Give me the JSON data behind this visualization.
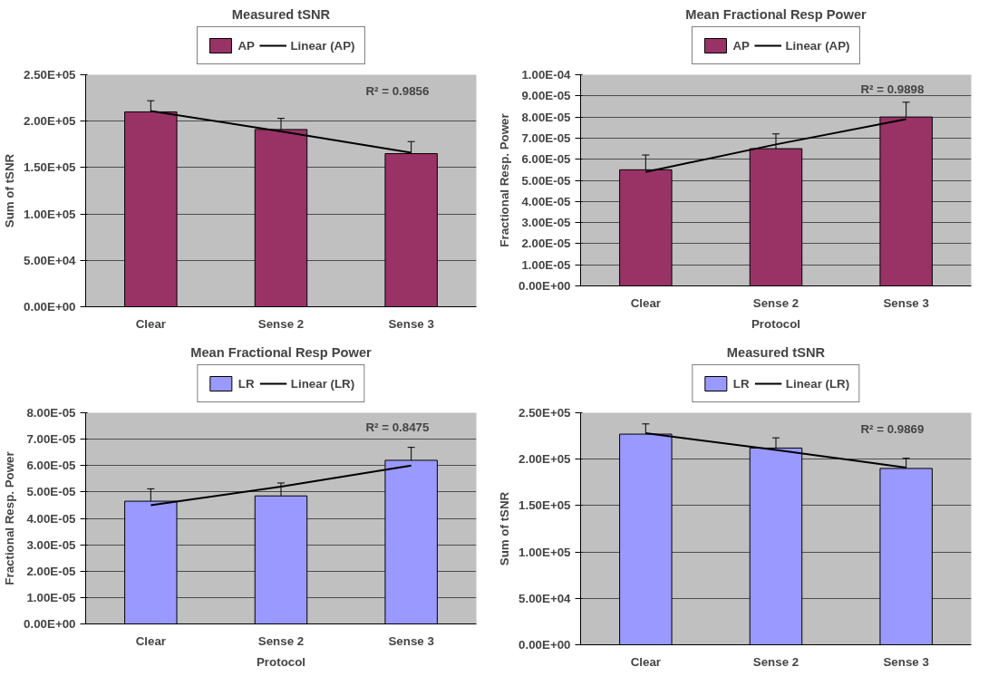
{
  "chart_data": [
    {
      "type": "bar",
      "title": "Measured tSNR",
      "ylabel": "Sum of tSNR",
      "categories": [
        "Clear",
        "Sense 2",
        "Sense 3"
      ],
      "series": [
        {
          "name": "AP",
          "color": "#993366",
          "values": [
            210000,
            191000,
            165000
          ],
          "errors": [
            12000,
            12000,
            13000
          ]
        },
        {
          "name": "Linear (AP)",
          "type": "line",
          "color": "#000000",
          "values": [
            211000,
            189000,
            166000
          ]
        }
      ],
      "ylim": [
        0,
        250000
      ],
      "yticks": [
        {
          "value": 0,
          "label": "0.00E+00"
        },
        {
          "value": 50000,
          "label": "5.00E+04"
        },
        {
          "value": 100000,
          "label": "1.00E+05"
        },
        {
          "value": 150000,
          "label": "1.50E+05"
        },
        {
          "value": 200000,
          "label": "2.00E+05"
        },
        {
          "value": 250000,
          "label": "2.50E+05"
        }
      ],
      "annotations": [
        "R² = 0.9856"
      ],
      "grid": "y",
      "legend": "top"
    },
    {
      "type": "bar",
      "title": "Mean Fractional Resp Power",
      "xlabel": "Protocol",
      "ylabel": "Fractional Resp. Power",
      "categories": [
        "Clear",
        "Sense 2",
        "Sense 3"
      ],
      "series": [
        {
          "name": "AP",
          "color": "#993366",
          "values": [
            5.5e-05,
            6.5e-05,
            8e-05
          ],
          "errors": [
            7e-06,
            7e-06,
            7e-06
          ]
        },
        {
          "name": "Linear (AP)",
          "type": "line",
          "color": "#000000",
          "values": [
            5.4e-05,
            6.7e-05,
            7.9e-05
          ]
        }
      ],
      "ylim": [
        0,
        0.0001
      ],
      "yticks": [
        {
          "value": 0,
          "label": "0.00E+00"
        },
        {
          "value": 1e-05,
          "label": "1.00E-05"
        },
        {
          "value": 2e-05,
          "label": "2.00E-05"
        },
        {
          "value": 3e-05,
          "label": "3.00E-05"
        },
        {
          "value": 4e-05,
          "label": "4.00E-05"
        },
        {
          "value": 5e-05,
          "label": "5.00E-05"
        },
        {
          "value": 6e-05,
          "label": "6.00E-05"
        },
        {
          "value": 7e-05,
          "label": "7.00E-05"
        },
        {
          "value": 8e-05,
          "label": "8.00E-05"
        },
        {
          "value": 9e-05,
          "label": "9.00E-05"
        },
        {
          "value": 0.0001,
          "label": "1.00E-04"
        }
      ],
      "annotations": [
        "R² = 0.9898"
      ],
      "grid": "y",
      "legend": "top"
    },
    {
      "type": "bar",
      "title": "Mean Fractional Resp Power",
      "xlabel": "Protocol",
      "ylabel": "Fractional Resp. Power",
      "categories": [
        "Clear",
        "Sense 2",
        "Sense 3"
      ],
      "series": [
        {
          "name": "LR",
          "color": "#9999ff",
          "values": [
            4.65e-05,
            4.85e-05,
            6.2e-05
          ],
          "errors": [
            4.7e-06,
            4.9e-06,
            4.9e-06
          ]
        },
        {
          "name": "Linear (LR)",
          "type": "line",
          "color": "#000000",
          "values": [
            4.5e-05,
            5.2e-05,
            6e-05
          ]
        }
      ],
      "ylim": [
        0,
        8e-05
      ],
      "yticks": [
        {
          "value": 0,
          "label": "0.00E+00"
        },
        {
          "value": 1e-05,
          "label": "1.00E-05"
        },
        {
          "value": 2e-05,
          "label": "2.00E-05"
        },
        {
          "value": 3e-05,
          "label": "3.00E-05"
        },
        {
          "value": 4e-05,
          "label": "4.00E-05"
        },
        {
          "value": 5e-05,
          "label": "5.00E-05"
        },
        {
          "value": 6e-05,
          "label": "6.00E-05"
        },
        {
          "value": 7e-05,
          "label": "7.00E-05"
        },
        {
          "value": 8e-05,
          "label": "8.00E-05"
        }
      ],
      "annotations": [
        "R² = 0.8475"
      ],
      "grid": "y",
      "legend": "top"
    },
    {
      "type": "bar",
      "title": "Measured tSNR",
      "ylabel": "Sum of tSNR",
      "categories": [
        "Clear",
        "Sense 2",
        "Sense 3"
      ],
      "series": [
        {
          "name": "LR",
          "color": "#9999ff",
          "values": [
            227000,
            212000,
            190000
          ],
          "errors": [
            11000,
            11000,
            11000
          ]
        },
        {
          "name": "Linear (LR)",
          "type": "line",
          "color": "#000000",
          "values": [
            228000,
            210000,
            191000
          ]
        }
      ],
      "ylim": [
        0,
        250000
      ],
      "yticks": [
        {
          "value": 0,
          "label": "0.00E+00"
        },
        {
          "value": 50000,
          "label": "5.00E+04"
        },
        {
          "value": 100000,
          "label": "1.00E+05"
        },
        {
          "value": 150000,
          "label": "1.50E+05"
        },
        {
          "value": 200000,
          "label": "2.00E+05"
        },
        {
          "value": 250000,
          "label": "2.50E+05"
        }
      ],
      "annotations": [
        "R² = 0.9869"
      ],
      "grid": "y",
      "legend": "top"
    }
  ]
}
